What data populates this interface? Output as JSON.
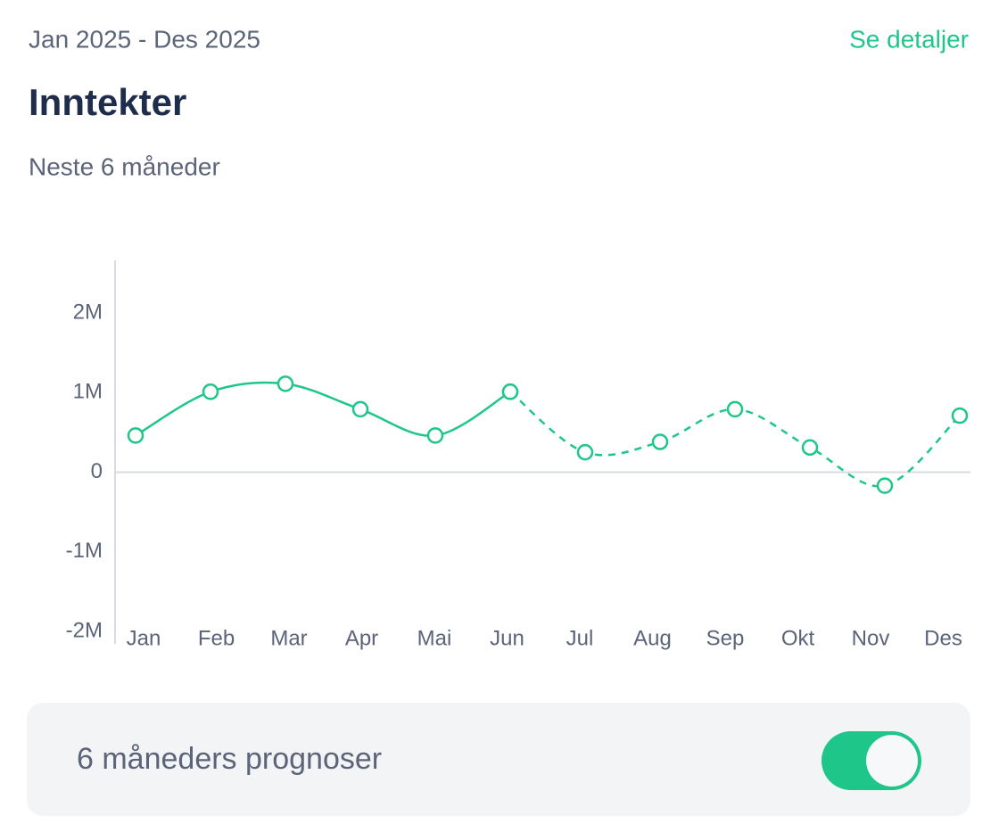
{
  "header": {
    "date_range": "Jan 2025 - Des 2025",
    "link": "Se detaljer"
  },
  "chart_data": {
    "type": "line",
    "title": "Inntekter",
    "subtitle": "Neste 6 måneder",
    "categories": [
      "Jan",
      "Feb",
      "Mar",
      "Apr",
      "Mai",
      "Jun",
      "Jul",
      "Aug",
      "Sep",
      "Okt",
      "Nov",
      "Des"
    ],
    "series": [
      {
        "color": "#1fc68a",
        "dashed": false,
        "values": [
          0.46,
          1.01,
          1.11,
          0.79,
          0.46,
          1.01,
          null,
          null,
          null,
          null,
          null,
          null
        ]
      },
      {
        "color": "#1fc68a",
        "dashed": true,
        "values": [
          null,
          null,
          null,
          null,
          null,
          1.01,
          0.25,
          0.38,
          0.79,
          0.31,
          -0.17,
          0.71
        ]
      }
    ],
    "ylim": [
      -2,
      2.66
    ],
    "yticks": [
      {
        "value": -2,
        "label": "-2M"
      },
      {
        "value": -1,
        "label": "-1M"
      },
      0,
      {
        "value": 1,
        "label": "1M"
      },
      {
        "value": 2,
        "label": "2M"
      }
    ]
  },
  "toggle": {
    "label": "6 måneders prognoser",
    "on": true
  }
}
